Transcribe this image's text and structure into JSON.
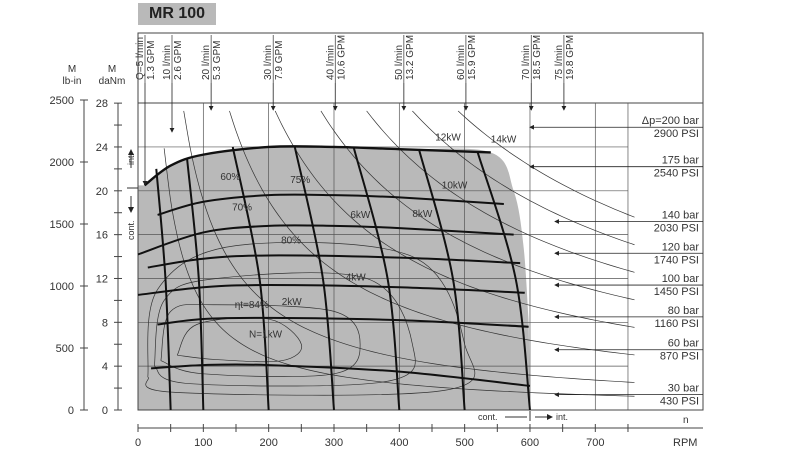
{
  "chart_data": {
    "type": "line",
    "title": "MR 100",
    "y_left_outer": {
      "label_top": "M",
      "label_unit": "lb-in",
      "ticks": [
        "0",
        "500",
        "1000",
        "1500",
        "2000",
        "2500"
      ],
      "range": [
        0,
        2500
      ]
    },
    "y_left_inner": {
      "label_top": "M",
      "label_unit": "daNm",
      "ticks": [
        "0",
        "4",
        "8",
        "12",
        "16",
        "20",
        "24",
        "28"
      ],
      "range": [
        0,
        28
      ]
    },
    "x_axis": {
      "label": "n",
      "unit": "RPM",
      "ticks": [
        "0",
        "100",
        "200",
        "300",
        "400",
        "500",
        "600",
        "700"
      ],
      "range": [
        0,
        750
      ]
    },
    "zone_labels": {
      "int_left": "int.",
      "cont_left": "cont.",
      "cont_bottom": "cont.",
      "int_bottom": "int."
    },
    "flow_labels": [
      {
        "lpm": "Q=5 l/min",
        "gpm": "1.3 GPM",
        "rpm": 10
      },
      {
        "lpm": "10 l/min",
        "gpm": "2.6 GPM",
        "rpm": 25
      },
      {
        "lpm": "20 l/min",
        "gpm": "5.3 GPM",
        "rpm": 115
      },
      {
        "lpm": "30 l/min",
        "gpm": "7.9 GPM",
        "rpm": 210
      },
      {
        "lpm": "40 l/min",
        "gpm": "10.6 GPM",
        "rpm": 305
      },
      {
        "lpm": "50 l/min",
        "gpm": "13.2 GPM",
        "rpm": 410
      },
      {
        "lpm": "60 l/min",
        "gpm": "15.9 GPM",
        "rpm": 505
      },
      {
        "lpm": "70 l/min",
        "gpm": "18.5 GPM",
        "rpm": 605
      },
      {
        "lpm": "75 l/min",
        "gpm": "19.8 GPM",
        "rpm": 655
      }
    ],
    "pressure_labels": [
      {
        "bar": "Δp=200 bar",
        "psi": "2900 PSI",
        "torque": 25.8
      },
      {
        "bar": "175 bar",
        "psi": "2540 PSI",
        "torque": 22.2
      },
      {
        "bar": "140 bar",
        "psi": "2030 PSI",
        "torque": 17.2
      },
      {
        "bar": "120 bar",
        "psi": "1740 PSI",
        "torque": 14.3
      },
      {
        "bar": "100 bar",
        "psi": "1450 PSI",
        "torque": 11.4
      },
      {
        "bar": "80 bar",
        "psi": "1160 PSI",
        "torque": 8.5
      },
      {
        "bar": "60 bar",
        "psi": "870 PSI",
        "torque": 5.5
      },
      {
        "bar": "30 bar",
        "psi": "430 PSI",
        "torque": 1.4
      }
    ],
    "pressure_curves": [
      {
        "bar": 200,
        "points": [
          [
            10,
            20.5
          ],
          [
            50,
            22.3
          ],
          [
            100,
            23.3
          ],
          [
            200,
            24
          ],
          [
            300,
            24
          ],
          [
            400,
            23.8
          ],
          [
            540,
            23.5
          ]
        ]
      },
      {
        "bar": 175,
        "points": [
          [
            30,
            17.8
          ],
          [
            100,
            19
          ],
          [
            200,
            19.6
          ],
          [
            300,
            19.6
          ],
          [
            400,
            19.4
          ],
          [
            560,
            18.8
          ]
        ]
      },
      {
        "bar": 140,
        "points": [
          [
            0,
            14.2
          ],
          [
            100,
            16.2
          ],
          [
            200,
            16.8
          ],
          [
            300,
            16.8
          ],
          [
            400,
            16.6
          ],
          [
            575,
            16
          ]
        ]
      },
      {
        "bar": 120,
        "points": [
          [
            15,
            13
          ],
          [
            100,
            13.8
          ],
          [
            200,
            14.1
          ],
          [
            400,
            13.9
          ],
          [
            585,
            13.4
          ]
        ]
      },
      {
        "bar": 100,
        "points": [
          [
            0,
            10.5
          ],
          [
            100,
            11.2
          ],
          [
            200,
            11.4
          ],
          [
            400,
            11.2
          ],
          [
            592,
            10.7
          ]
        ]
      },
      {
        "bar": 80,
        "points": [
          [
            30,
            7.8
          ],
          [
            100,
            8.3
          ],
          [
            200,
            8.4
          ],
          [
            400,
            8.2
          ],
          [
            598,
            7.6
          ]
        ]
      },
      {
        "bar": 60,
        "points": [
          [
            20,
            3.8
          ],
          [
            100,
            4.1
          ],
          [
            200,
            4.1
          ],
          [
            400,
            3.5
          ],
          [
            600,
            2.2
          ]
        ]
      }
    ],
    "flow_curves": [
      {
        "lpm": 10,
        "points": [
          [
            28,
            22
          ],
          [
            42,
            12
          ],
          [
            50,
            0
          ]
        ]
      },
      {
        "lpm": 20,
        "points": [
          [
            75,
            23
          ],
          [
            93,
            12
          ],
          [
            100,
            0
          ]
        ]
      },
      {
        "lpm": 30,
        "points": [
          [
            145,
            24
          ],
          [
            186,
            12
          ],
          [
            200,
            0
          ]
        ]
      },
      {
        "lpm": 40,
        "points": [
          [
            240,
            24
          ],
          [
            283,
            12
          ],
          [
            300,
            0
          ]
        ]
      },
      {
        "lpm": 50,
        "points": [
          [
            330,
            24
          ],
          [
            382,
            12
          ],
          [
            400,
            0
          ]
        ]
      },
      {
        "lpm": 60,
        "points": [
          [
            430,
            23.8
          ],
          [
            482,
            12
          ],
          [
            500,
            0
          ]
        ]
      },
      {
        "lpm": 70,
        "points": [
          [
            520,
            23.5
          ],
          [
            578,
            12
          ],
          [
            600,
            0
          ]
        ]
      }
    ],
    "envelope": [
      [
        10,
        20.5
      ],
      [
        50,
        22.3
      ],
      [
        100,
        23.3
      ],
      [
        200,
        24
      ],
      [
        300,
        24
      ],
      [
        400,
        23.8
      ],
      [
        540,
        23.5
      ],
      [
        575,
        20
      ],
      [
        590,
        15
      ],
      [
        598,
        8
      ],
      [
        600,
        0
      ],
      [
        0,
        0
      ],
      [
        0,
        20.5
      ]
    ],
    "power_curves_kw": [
      1,
      2,
      4,
      6,
      8,
      10,
      12,
      14
    ],
    "annotations": [
      {
        "text": "60%",
        "rpm": 126,
        "torque": 21
      },
      {
        "text": "75%",
        "rpm": 233,
        "torque": 20.7
      },
      {
        "text": "70%",
        "rpm": 144,
        "torque": 18.2
      },
      {
        "text": "80%",
        "rpm": 219,
        "torque": 15.2
      },
      {
        "text": "ηt=84%",
        "rpm": 148,
        "torque": 9.3
      },
      {
        "text": "N=1kW",
        "rpm": 170,
        "torque": 6.6
      },
      {
        "text": "2kW",
        "rpm": 220,
        "torque": 9.6
      },
      {
        "text": "4kW",
        "rpm": 318,
        "torque": 11.8
      },
      {
        "text": "6kW",
        "rpm": 325,
        "torque": 17.5
      },
      {
        "text": "8kW",
        "rpm": 420,
        "torque": 17.6
      },
      {
        "text": "10kW",
        "rpm": 465,
        "torque": 20.2
      },
      {
        "text": "12kW",
        "rpm": 455,
        "torque": 24.6
      },
      {
        "text": "14kW",
        "rpm": 540,
        "torque": 24.4
      }
    ],
    "efficiency_contours": [
      {
        "points": [
          [
            60,
            5
          ],
          [
            90,
            7.8
          ],
          [
            200,
            8.3
          ],
          [
            250,
            6
          ],
          [
            220,
            4.5
          ],
          [
            120,
            4.6
          ],
          [
            60,
            5
          ]
        ]
      },
      {
        "points": [
          [
            35,
            4.5
          ],
          [
            50,
            9
          ],
          [
            120,
            9.6
          ],
          [
            300,
            9
          ],
          [
            340,
            6
          ],
          [
            300,
            3.3
          ],
          [
            100,
            3.3
          ],
          [
            35,
            4.5
          ]
        ]
      },
      {
        "points": [
          [
            25,
            4
          ],
          [
            40,
            10
          ],
          [
            120,
            12
          ],
          [
            350,
            12
          ],
          [
            420,
            6
          ],
          [
            380,
            2.6
          ],
          [
            80,
            2.4
          ],
          [
            25,
            4
          ]
        ]
      },
      {
        "points": [
          [
            15,
            3
          ],
          [
            30,
            11
          ],
          [
            150,
            15
          ],
          [
            420,
            14
          ],
          [
            500,
            6
          ],
          [
            470,
            1.8
          ],
          [
            60,
            1.6
          ],
          [
            15,
            3
          ]
        ]
      }
    ],
    "colors": {
      "envelope_fill": "#b9b9b9",
      "lines": "#222222",
      "title_bg": "#b9b9b9"
    }
  }
}
